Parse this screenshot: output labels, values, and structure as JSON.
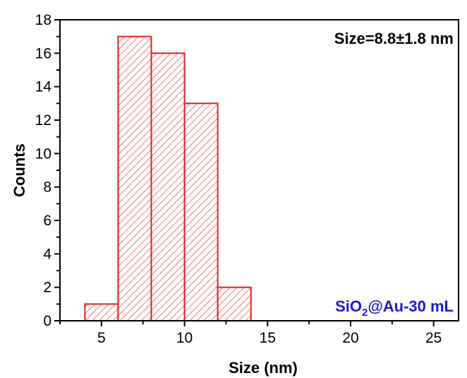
{
  "chart_data": {
    "type": "bar",
    "bins": [
      {
        "x0": 4,
        "x1": 6,
        "count": 1
      },
      {
        "x0": 6,
        "x1": 8,
        "count": 17
      },
      {
        "x0": 8,
        "x1": 10,
        "count": 16
      },
      {
        "x0": 10,
        "x1": 12,
        "count": 13
      },
      {
        "x0": 12,
        "x1": 14,
        "count": 2
      }
    ],
    "xlabel": "Size (nm)",
    "ylabel": "Counts",
    "xlim": [
      2.5,
      26.5
    ],
    "ylim": [
      0,
      18
    ],
    "xticks": [
      5,
      10,
      15,
      20,
      25
    ],
    "yticks": [
      0,
      2,
      4,
      6,
      8,
      10,
      12,
      14,
      16,
      18
    ],
    "grid": false,
    "bar_color": "#e02020",
    "hatch": "diagonal",
    "annotations": {
      "size_label": "Size=8.8±1.8 nm",
      "sample_prefix": "SiO",
      "sample_subscript": "2",
      "sample_suffix": "@Au-30 mL",
      "sample_color": "#1a1ad6"
    }
  }
}
